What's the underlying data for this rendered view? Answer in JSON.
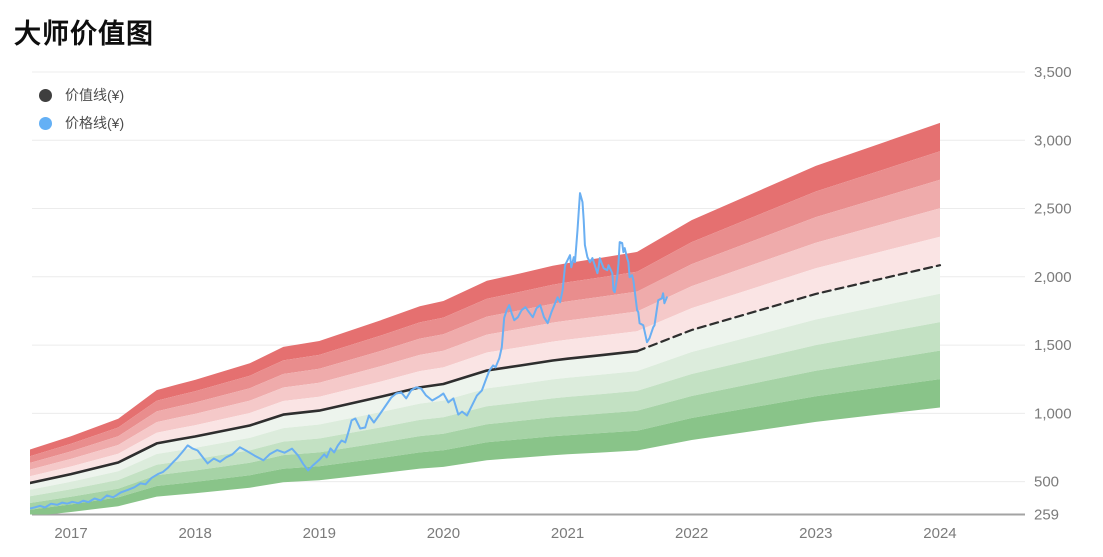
{
  "title": "大师价值图",
  "legend": {
    "items": [
      {
        "label": "价值线(¥)",
        "color": "#3f3f3f"
      },
      {
        "label": "价格线(¥)",
        "color": "#64b0f5"
      }
    ]
  },
  "chart_data": {
    "type": "line",
    "title": "大师价值图",
    "legend_position": "top-left",
    "grid": true,
    "x_axis": {
      "tick_years": [
        2017,
        2018,
        2019,
        2020,
        2021,
        2022,
        2023,
        2024
      ],
      "tick_labels": [
        "2017",
        "2018",
        "2019",
        "2020",
        "2021",
        "2022",
        "2023",
        "2024"
      ],
      "range": [
        2016.67,
        2024.68
      ]
    },
    "y_axis": {
      "side": "right",
      "range": [
        259,
        3500
      ],
      "ticks": [
        {
          "v": 259,
          "label": "259"
        },
        {
          "v": 500,
          "label": "500"
        },
        {
          "v": 1000,
          "label": "1,000"
        },
        {
          "v": 1500,
          "label": "1,500"
        },
        {
          "v": 2000,
          "label": "2,000"
        },
        {
          "v": 2500,
          "label": "2,500"
        },
        {
          "v": 3000,
          "label": "3,000"
        },
        {
          "v": 3500,
          "label": "3,500"
        }
      ]
    },
    "colors": {
      "value_line": "#2e2e2e",
      "price_line": "#6aaff2",
      "gridline": "#ececec",
      "axis_line": "#a3a3a3",
      "tick_text": "#7b7b7b"
    },
    "bands": {
      "based_on": "价值线",
      "multipliers": [
        1.5,
        1.4,
        1.3,
        1.2,
        1.1,
        1.0,
        0.9,
        0.8,
        0.7,
        0.6,
        0.5
      ],
      "colors": [
        "#e57070",
        "#e98d8d",
        "#efabab",
        "#f5c9c9",
        "#fae4e4",
        "#edf4ed",
        "#dcecdc",
        "#c3e1c3",
        "#a6d3a6",
        "#89c489"
      ]
    },
    "series": [
      {
        "name": "价值线(¥)",
        "style": "solid",
        "points": [
          [
            2016.67,
            490
          ],
          [
            2017.0,
            555
          ],
          [
            2017.38,
            640
          ],
          [
            2017.69,
            780
          ],
          [
            2017.86,
            808
          ],
          [
            2018.0,
            830
          ],
          [
            2018.44,
            911
          ],
          [
            2018.71,
            991
          ],
          [
            2019.0,
            1020
          ],
          [
            2019.49,
            1120
          ],
          [
            2019.81,
            1190
          ],
          [
            2020.0,
            1215
          ],
          [
            2020.35,
            1314
          ],
          [
            2020.62,
            1350
          ],
          [
            2020.88,
            1387
          ],
          [
            2021.0,
            1400
          ],
          [
            2021.26,
            1425
          ],
          [
            2021.56,
            1455
          ]
        ]
      },
      {
        "name": "价值线预测(虚线)",
        "style": "dashed",
        "points": [
          [
            2021.56,
            1455
          ],
          [
            2022.0,
            1610
          ],
          [
            2023.0,
            1875
          ],
          [
            2024.0,
            2085
          ]
        ]
      },
      {
        "name": "价格线(¥)",
        "style": "solid",
        "points": [
          [
            2016.67,
            303
          ],
          [
            2016.71,
            312
          ],
          [
            2016.75,
            323
          ],
          [
            2016.79,
            310
          ],
          [
            2016.84,
            338
          ],
          [
            2016.89,
            330
          ],
          [
            2016.93,
            346
          ],
          [
            2016.97,
            338
          ],
          [
            2017.01,
            352
          ],
          [
            2017.06,
            342
          ],
          [
            2017.1,
            360
          ],
          [
            2017.14,
            350
          ],
          [
            2017.19,
            376
          ],
          [
            2017.24,
            362
          ],
          [
            2017.29,
            399
          ],
          [
            2017.34,
            385
          ],
          [
            2017.4,
            420
          ],
          [
            2017.46,
            440
          ],
          [
            2017.51,
            458
          ],
          [
            2017.56,
            487
          ],
          [
            2017.6,
            480
          ],
          [
            2017.65,
            528
          ],
          [
            2017.7,
            555
          ],
          [
            2017.74,
            570
          ],
          [
            2017.78,
            600
          ],
          [
            2017.82,
            640
          ],
          [
            2017.86,
            677
          ],
          [
            2017.9,
            720
          ],
          [
            2017.94,
            765
          ],
          [
            2017.98,
            742
          ],
          [
            2018.02,
            728
          ],
          [
            2018.06,
            680
          ],
          [
            2018.1,
            633
          ],
          [
            2018.15,
            669
          ],
          [
            2018.2,
            645
          ],
          [
            2018.25,
            678
          ],
          [
            2018.3,
            700
          ],
          [
            2018.36,
            751
          ],
          [
            2018.42,
            722
          ],
          [
            2018.48,
            690
          ],
          [
            2018.55,
            656
          ],
          [
            2018.6,
            700
          ],
          [
            2018.66,
            731
          ],
          [
            2018.72,
            712
          ],
          [
            2018.78,
            742
          ],
          [
            2018.83,
            690
          ],
          [
            2018.87,
            630
          ],
          [
            2018.91,
            582
          ],
          [
            2018.95,
            620
          ],
          [
            2019.0,
            660
          ],
          [
            2019.04,
            700
          ],
          [
            2019.06,
            678
          ],
          [
            2019.09,
            743
          ],
          [
            2019.12,
            714
          ],
          [
            2019.15,
            765
          ],
          [
            2019.18,
            801
          ],
          [
            2019.21,
            787
          ],
          [
            2019.24,
            880
          ],
          [
            2019.26,
            948
          ],
          [
            2019.29,
            962
          ],
          [
            2019.33,
            889
          ],
          [
            2019.37,
            896
          ],
          [
            2019.4,
            984
          ],
          [
            2019.44,
            933
          ],
          [
            2019.48,
            984
          ],
          [
            2019.53,
            1050
          ],
          [
            2019.58,
            1116
          ],
          [
            2019.62,
            1145
          ],
          [
            2019.66,
            1153
          ],
          [
            2019.7,
            1109
          ],
          [
            2019.74,
            1168
          ],
          [
            2019.78,
            1190
          ],
          [
            2019.82,
            1182
          ],
          [
            2019.86,
            1131
          ],
          [
            2019.91,
            1094
          ],
          [
            2019.96,
            1120
          ],
          [
            2020.0,
            1145
          ],
          [
            2020.04,
            1080
          ],
          [
            2020.08,
            1109
          ],
          [
            2020.12,
            991
          ],
          [
            2020.15,
            1013
          ],
          [
            2020.19,
            984
          ],
          [
            2020.23,
            1058
          ],
          [
            2020.27,
            1130
          ],
          [
            2020.31,
            1168
          ],
          [
            2020.34,
            1241
          ],
          [
            2020.37,
            1314
          ],
          [
            2020.4,
            1351
          ],
          [
            2020.42,
            1337
          ],
          [
            2020.45,
            1403
          ],
          [
            2020.47,
            1484
          ],
          [
            2020.49,
            1700
          ],
          [
            2020.51,
            1755
          ],
          [
            2020.53,
            1792
          ],
          [
            2020.55,
            1733
          ],
          [
            2020.57,
            1682
          ],
          [
            2020.6,
            1704
          ],
          [
            2020.63,
            1755
          ],
          [
            2020.66,
            1777
          ],
          [
            2020.69,
            1740
          ],
          [
            2020.72,
            1704
          ],
          [
            2020.75,
            1770
          ],
          [
            2020.78,
            1792
          ],
          [
            2020.81,
            1704
          ],
          [
            2020.84,
            1660
          ],
          [
            2020.87,
            1740
          ],
          [
            2020.9,
            1806
          ],
          [
            2020.92,
            1850
          ],
          [
            2020.94,
            1814
          ],
          [
            2020.96,
            1902
          ],
          [
            2020.98,
            2085
          ],
          [
            2021.0,
            2122
          ],
          [
            2021.02,
            2158
          ],
          [
            2021.03,
            2070
          ],
          [
            2021.05,
            2144
          ],
          [
            2021.06,
            2107
          ],
          [
            2021.08,
            2342
          ],
          [
            2021.09,
            2474
          ],
          [
            2021.1,
            2613
          ],
          [
            2021.12,
            2547
          ],
          [
            2021.13,
            2415
          ],
          [
            2021.14,
            2232
          ],
          [
            2021.16,
            2144
          ],
          [
            2021.18,
            2107
          ],
          [
            2021.2,
            2137
          ],
          [
            2021.24,
            2026
          ],
          [
            2021.25,
            2070
          ],
          [
            2021.26,
            2137
          ],
          [
            2021.29,
            2063
          ],
          [
            2021.32,
            2048
          ],
          [
            2021.33,
            2085
          ],
          [
            2021.36,
            2026
          ],
          [
            2021.37,
            1902
          ],
          [
            2021.38,
            1887
          ],
          [
            2021.4,
            1997
          ],
          [
            2021.41,
            2100
          ],
          [
            2021.42,
            2254
          ],
          [
            2021.44,
            2247
          ],
          [
            2021.45,
            2181
          ],
          [
            2021.46,
            2210
          ],
          [
            2021.48,
            2137
          ],
          [
            2021.49,
            2107
          ],
          [
            2021.5,
            1997
          ],
          [
            2021.52,
            2012
          ],
          [
            2021.53,
            1975
          ],
          [
            2021.56,
            1755
          ],
          [
            2021.57,
            1741
          ],
          [
            2021.58,
            1660
          ],
          [
            2021.61,
            1645
          ],
          [
            2021.64,
            1521
          ],
          [
            2021.66,
            1550
          ],
          [
            2021.69,
            1630
          ],
          [
            2021.7,
            1645
          ],
          [
            2021.73,
            1828
          ],
          [
            2021.76,
            1843
          ],
          [
            2021.77,
            1879
          ],
          [
            2021.78,
            1806
          ],
          [
            2021.8,
            1850
          ]
        ]
      }
    ]
  }
}
